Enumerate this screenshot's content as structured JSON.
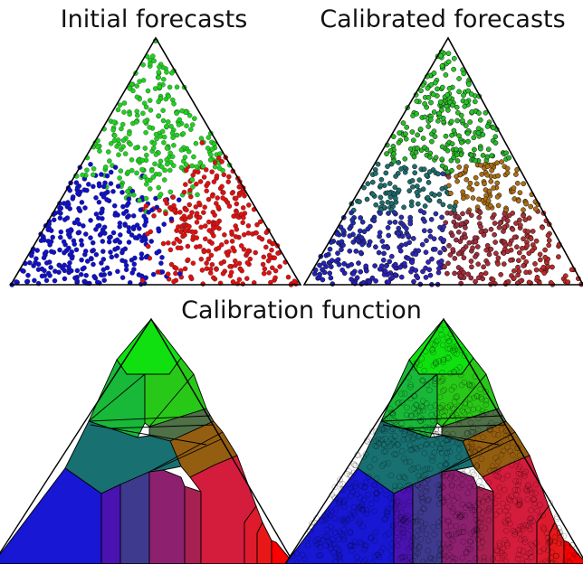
{
  "titles": {
    "initial": "Initial forecasts",
    "calibrated": "Calibrated forecasts",
    "function": "Calibration function"
  },
  "chart_data": [
    {
      "type": "scatter",
      "title": "Initial forecasts",
      "coordinate_system": "ternary simplex",
      "point_colors": [
        "#1010c8",
        "#e01010",
        "#20d020"
      ],
      "approx_point_count": 900
    },
    {
      "type": "scatter",
      "title": "Calibrated forecasts",
      "coordinate_system": "ternary simplex",
      "point_colors": "blended per region",
      "approx_point_count": 900
    },
    {
      "type": "heatmap",
      "title": "Calibration function",
      "coordinate_system": "ternary simplex",
      "region_colors": [
        "#10e010",
        "#18b838",
        "#28c818",
        "#507048",
        "#945e10",
        "#187070",
        "#1717d4",
        "#4a12b0",
        "#3e3a8e",
        "#8e2070",
        "#d41c3c",
        "#dd1b2d",
        "#e81818",
        "#ff0000"
      ]
    }
  ]
}
